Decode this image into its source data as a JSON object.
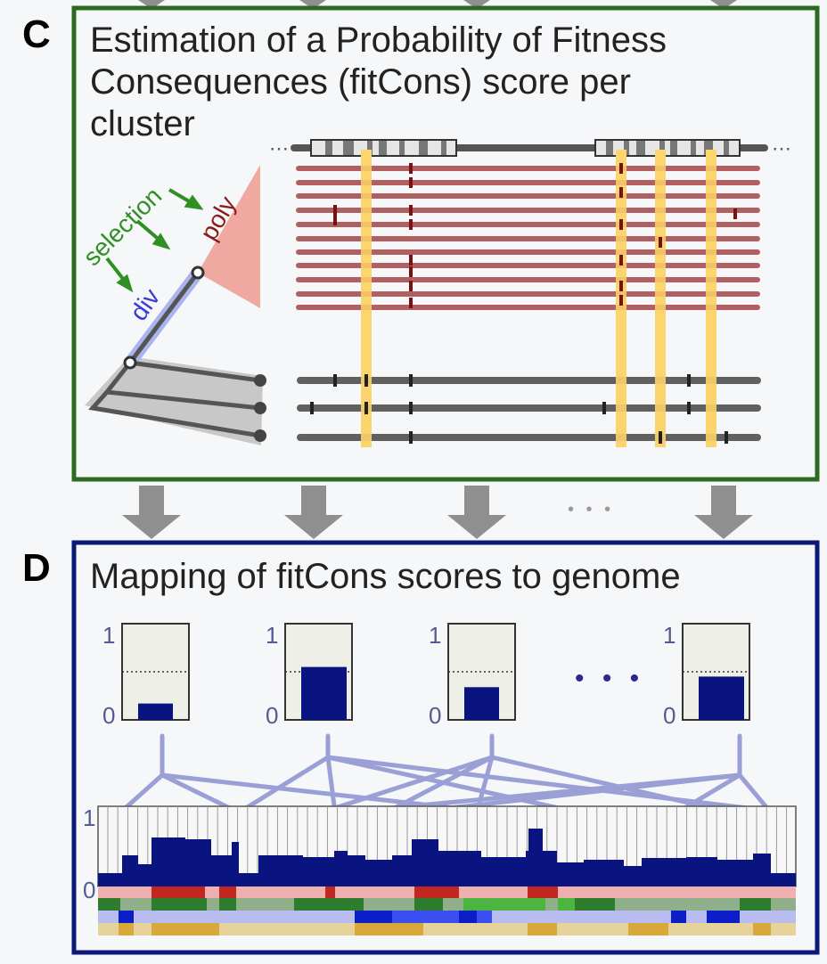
{
  "panel_c": {
    "letter": "C",
    "title_lines": [
      "Estimation of a Probability of Fitness",
      "Consequences (fitCons) score per",
      "cluster"
    ],
    "label_selection": "selection",
    "label_poly": "poly",
    "label_div": "div",
    "dots_left": "⋯",
    "dots_right": "⋯"
  },
  "panel_d": {
    "letter": "D",
    "title": "Mapping of fitCons scores to genome",
    "axis_top": "1",
    "axis_bottom": "0",
    "ellipsis": "• • •",
    "cluster_scores": [
      0.17,
      0.55,
      0.34,
      0.45
    ]
  },
  "between_ellipsis": "• • •",
  "colors": {
    "panel_c_border": "#2e6b22",
    "panel_d_border": "#0b1a78",
    "selection_green": "#2f8f23",
    "poly_red": "#8b1a1a",
    "div_blue": "#3b3bd0",
    "score_bar": "#0a1480",
    "link_lines": "#9a9fd6",
    "highlight_yellow": "#fbd56c",
    "poly_lines": "#b06060",
    "gray_lines": "#606060",
    "arrow_gray": "#8f8f8f"
  }
}
